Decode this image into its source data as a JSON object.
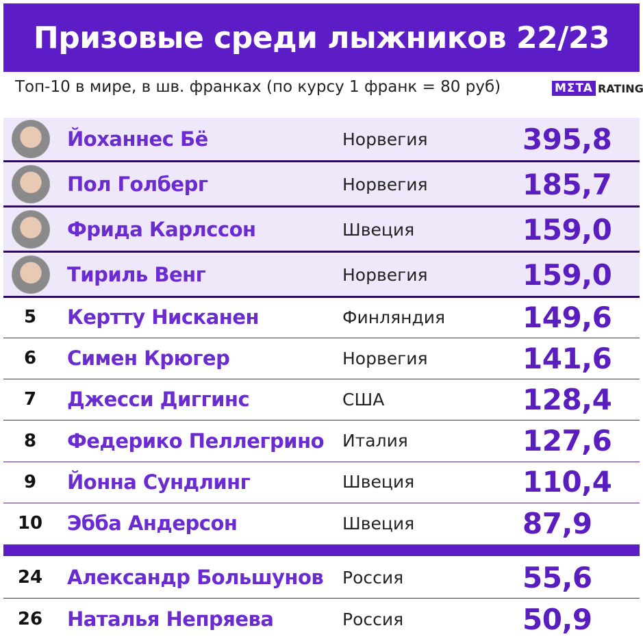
{
  "header": {
    "title": "Призовые среди лыжников 22/23",
    "subtitle": "Топ-10 в мире, в шв. франках (по курсу 1 франк = 80 руб)",
    "logo": {
      "mark": "MΣTA",
      "text": "RATINGS"
    }
  },
  "table": {
    "rows": [
      {
        "name": "Йоханнес Бё",
        "country": "Норвегия",
        "value": "395,8"
      },
      {
        "name": "Пол Голберг",
        "country": "Норвегия",
        "value": "185,7"
      },
      {
        "name": "Фрида Карлссон",
        "country": "Швеция",
        "value": "159,0"
      },
      {
        "name": "Тириль Венг",
        "country": "Норвегия",
        "value": "159,0"
      },
      {
        "rank": "5",
        "name": "Кертту Нисканен",
        "country": "Финляндия",
        "value": "149,6"
      },
      {
        "rank": "6",
        "name": "Симен Крюгер",
        "country": "Норвегия",
        "value": "141,6"
      },
      {
        "rank": "7",
        "name": "Джесси Диггинс",
        "country": "США",
        "value": "128,4"
      },
      {
        "rank": "8",
        "name": "Федерико Пеллегрино",
        "country": "Италия",
        "value": "127,6"
      },
      {
        "rank": "9",
        "name": "Йонна Сундлинг",
        "country": "Швеция",
        "value": "110,4"
      },
      {
        "rank": "10",
        "name": "Эбба Андерсон",
        "country": "Швеция",
        "value": "87,9"
      },
      {
        "rank": "24",
        "name": "Александр Большунов",
        "country": "Россия",
        "value": "55,6"
      },
      {
        "rank": "26",
        "name": "Наталья Непряева",
        "country": "Россия",
        "value": "50,9"
      }
    ]
  }
}
